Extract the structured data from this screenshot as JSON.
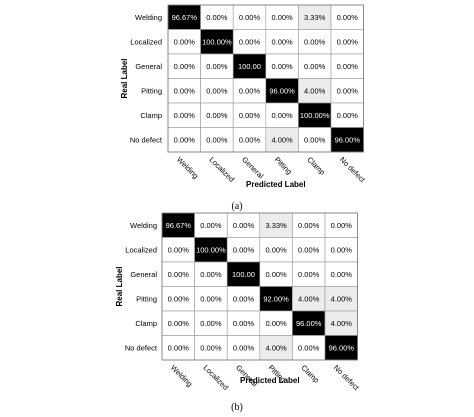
{
  "chart_data": [
    {
      "type": "heatmap",
      "panel_label": "(a)",
      "xlabel": "Predicted Label",
      "ylabel": "Real Label",
      "rows": [
        "Welding",
        "Localized",
        "General",
        "Pitting",
        "Clamp",
        "No defect"
      ],
      "columns": [
        "Welding",
        "Localized",
        "General",
        "Pitting",
        "Clamp",
        "No defect"
      ],
      "values": [
        [
          96.67,
          0,
          0,
          0,
          3.33,
          0
        ],
        [
          0,
          100,
          0,
          0,
          0,
          0
        ],
        [
          0,
          0,
          100,
          0,
          0,
          0
        ],
        [
          0,
          0,
          0,
          96,
          4,
          0
        ],
        [
          0,
          0,
          0,
          0,
          100,
          0
        ],
        [
          0,
          0,
          0,
          4,
          0,
          96
        ]
      ],
      "labels": [
        [
          "96.67%",
          "0.00%",
          "0.00%",
          "0.00%",
          "3.33%",
          "0.00%"
        ],
        [
          "0.00%",
          "100.00%",
          "0.00%",
          "0.00%",
          "0.00%",
          "0.00%"
        ],
        [
          "0.00%",
          "0.00%",
          "100.00",
          "0.00%",
          "0.00%",
          "0.00%"
        ],
        [
          "0.00%",
          "0.00%",
          "0.00%",
          "96.00%",
          "4.00%",
          "0.00%"
        ],
        [
          "0.00%",
          "0.00%",
          "0.00%",
          "0.00%",
          "100.00%",
          "0.00%"
        ],
        [
          "0.00%",
          "0.00%",
          "0.00%",
          "4.00%",
          "0.00%",
          "96.00%"
        ]
      ]
    },
    {
      "type": "heatmap",
      "panel_label": "(b)",
      "xlabel": "Predicted Label",
      "ylabel": "Real Label",
      "rows": [
        "Welding",
        "Localized",
        "General",
        "Pitting",
        "Clamp",
        "No defect"
      ],
      "columns": [
        "Welding",
        "Localized",
        "General",
        "Pitting",
        "Clamp",
        "No defect"
      ],
      "values": [
        [
          96.67,
          0,
          0,
          3.33,
          0,
          0
        ],
        [
          0,
          100,
          0,
          0,
          0,
          0
        ],
        [
          0,
          0,
          100,
          0,
          0,
          0
        ],
        [
          0,
          0,
          0,
          92,
          4,
          4
        ],
        [
          0,
          0,
          0,
          0,
          96,
          4
        ],
        [
          0,
          0,
          0,
          4,
          0,
          96
        ]
      ],
      "labels": [
        [
          "96.67%",
          "0.00%",
          "0.00%",
          "3.33%",
          "0.00%",
          "0.00%"
        ],
        [
          "0.00%",
          "100.00%",
          "0.00%",
          "0.00%",
          "0.00%",
          "0.00%"
        ],
        [
          "0.00%",
          "0.00%",
          "100.00",
          "0.00%",
          "0.00%",
          "0.00%"
        ],
        [
          "0.00%",
          "0.00%",
          "0.00%",
          "92.00%",
          "4.00%",
          "4.00%"
        ],
        [
          "0.00%",
          "0.00%",
          "0.00%",
          "0.00%",
          "96.00%",
          "4.00%"
        ],
        [
          "0.00%",
          "0.00%",
          "0.00%",
          "4.00%",
          "0.00%",
          "96.00%"
        ]
      ]
    }
  ]
}
